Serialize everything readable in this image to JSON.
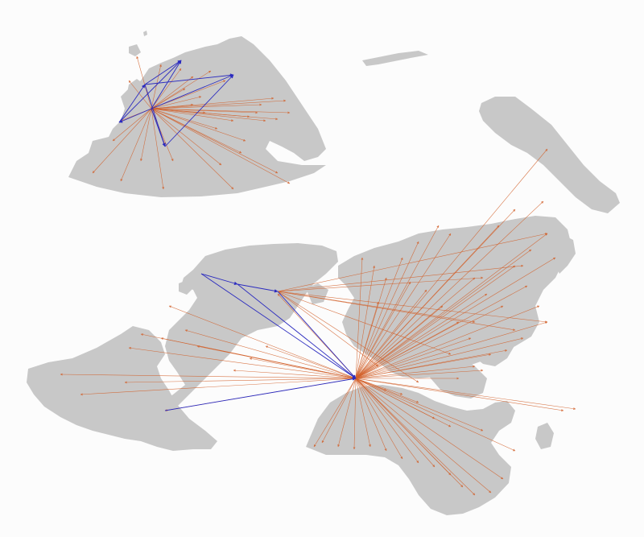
{
  "colors": {
    "background": "#fcfcfc",
    "land": "#c8c8c8",
    "route_external": "#d2602a",
    "route_internal": "#2b2bbf"
  },
  "legend": null
}
